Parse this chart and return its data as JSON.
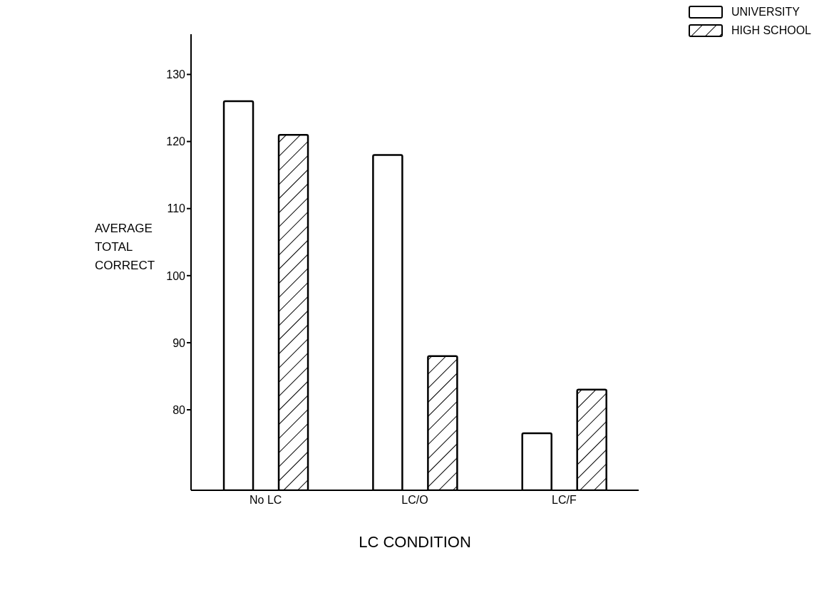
{
  "chart_data": {
    "type": "bar",
    "xlabel": "LC CONDITION",
    "ylabel": "AVERAGE TOTAL CORRECT",
    "categories": [
      "No LC",
      "LC/O",
      "LC/F"
    ],
    "series": [
      {
        "name": "UNIVERSITY",
        "color": "#ffffff",
        "values": [
          126,
          118,
          76.5
        ]
      },
      {
        "name": "HIGH SCHOOL",
        "color": "#000000",
        "values": [
          121,
          88,
          83
        ]
      }
    ],
    "ylim": [
      68,
      136
    ],
    "yticks": [
      80,
      90,
      100,
      110,
      120,
      130
    ],
    "grid": false,
    "legend": "top right"
  }
}
